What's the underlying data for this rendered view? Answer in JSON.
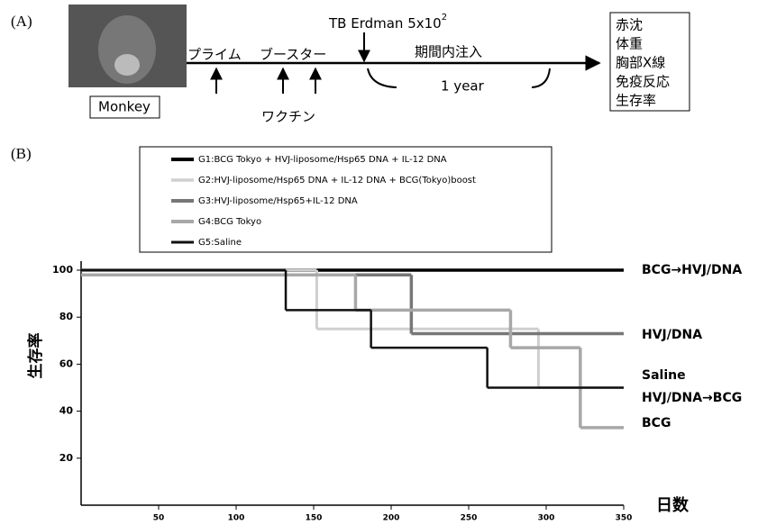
{
  "diagram": {
    "panel_a": "(A)",
    "subject": "Monkey",
    "prime": "プライム",
    "booster": "ブースター",
    "vaccine": "ワクチン",
    "challenge": "TB Erdman 5x10",
    "challenge_exp": "2",
    "period": "期間内注入",
    "duration": "1 year",
    "measures": [
      "赤沈",
      "体重",
      "胸部X線",
      "免疫反応",
      "生存率"
    ]
  },
  "chart_data": {
    "type": "step",
    "panel": "(B)",
    "ylabel": "生存率",
    "xlabel": "日数",
    "xlim": [
      0,
      350
    ],
    "xticks": [
      50,
      100,
      150,
      200,
      250,
      300,
      350
    ],
    "ylim": [
      0,
      100
    ],
    "yticks": [
      20,
      40,
      60,
      80,
      100
    ],
    "series": [
      {
        "name": "G1:BCG Tokyo + HVJ-liposome/Hsp65 DNA + IL-12 DNA",
        "label": "BCG→HVJ/DNA",
        "color": "#000000",
        "width": 3.5,
        "x": [
          0,
          350
        ],
        "values": [
          100,
          100
        ]
      },
      {
        "name": "G2:HVJ-liposome/Hsp65 DNA + IL-12 DNA + BCG(Tokyo)boost",
        "label": "HVJ/DNA→BCG",
        "color": "#cfcfcf",
        "width": 3,
        "x": [
          0,
          152,
          295,
          350
        ],
        "values": [
          100,
          75,
          50,
          50
        ]
      },
      {
        "name": "G3:HVJ-liposome/Hsp65+IL-12 DNA",
        "label": "HVJ/DNA",
        "color": "#777777",
        "width": 3.5,
        "x": [
          0,
          213,
          350
        ],
        "values": [
          98,
          73,
          73
        ]
      },
      {
        "name": "G4:BCG Tokyo",
        "label": "BCG",
        "color": "#a8a8a8",
        "width": 3.5,
        "x": [
          0,
          177,
          277,
          322,
          350
        ],
        "values": [
          98,
          83,
          67,
          33,
          33
        ]
      },
      {
        "name": "G5:Saline",
        "label": "Saline",
        "color": "#111111",
        "width": 2.5,
        "x": [
          0,
          132,
          187,
          262,
          350
        ],
        "values": [
          100,
          83,
          67,
          50,
          50
        ]
      }
    ]
  }
}
